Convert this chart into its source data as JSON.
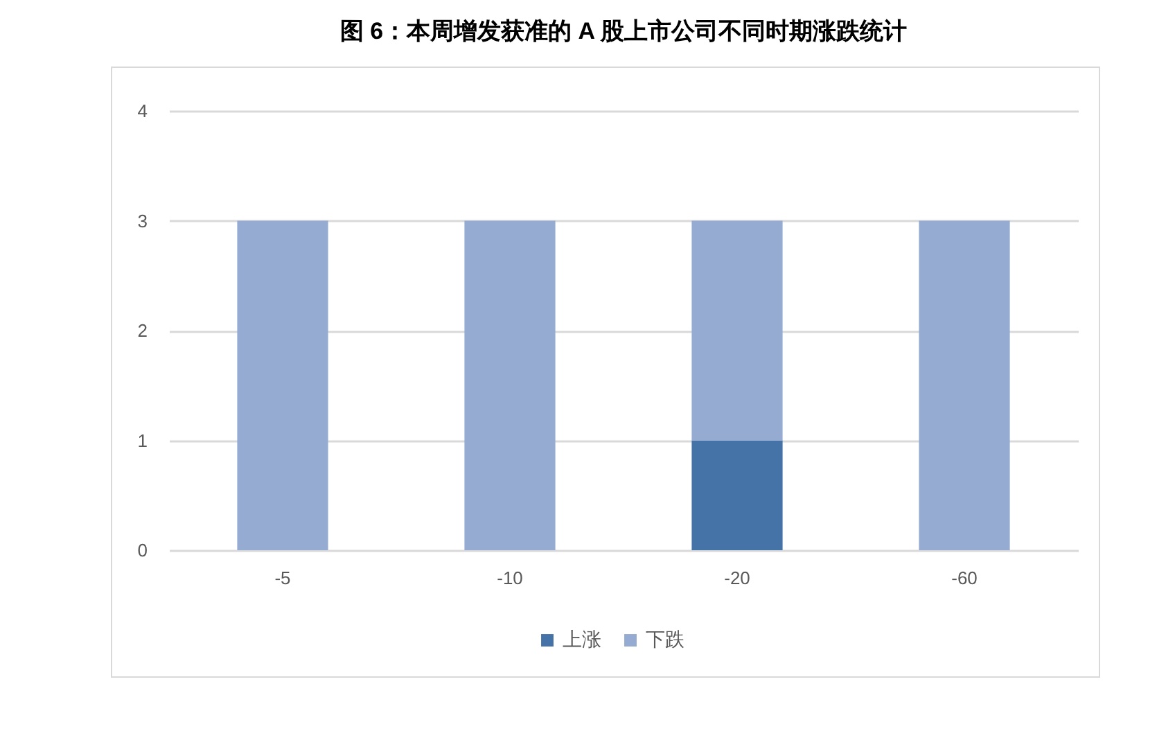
{
  "chart_data": {
    "type": "bar",
    "title": "图 6：本周增发获准的 A 股上市公司不同时期涨跌统计",
    "categories": [
      "-5",
      "-10",
      "-20",
      "-60"
    ],
    "series": [
      {
        "name": "上涨",
        "color": "#4572a7",
        "values": [
          0,
          0,
          1,
          0
        ]
      },
      {
        "name": "下跌",
        "color": "#95abd1",
        "values": [
          3,
          3,
          2,
          3
        ]
      }
    ],
    "stacked": true,
    "ylim": [
      0,
      4
    ],
    "yticks": [
      0,
      1,
      2,
      3,
      4
    ],
    "grid": "y",
    "legend": "bottom"
  }
}
